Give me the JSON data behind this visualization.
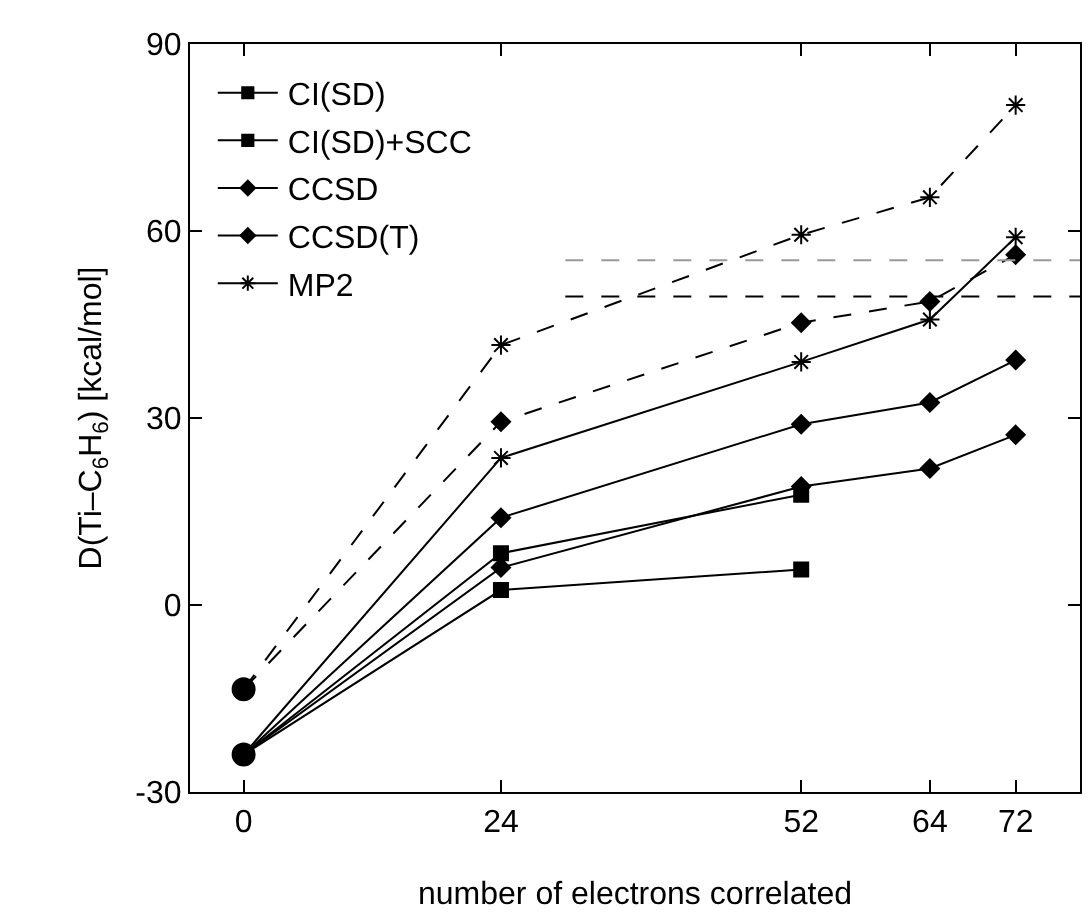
{
  "chart_data": {
    "type": "line",
    "xlabel": "number of electrons correlated",
    "ylabel": "D(Ti–C$_{6}$H$_{6}$) [kcal/mol]",
    "x": [
      0,
      24,
      52,
      64,
      72
    ],
    "xlim": [
      -5,
      78
    ],
    "xticks": [
      0,
      24,
      52,
      64,
      72
    ],
    "ylim": [
      -30,
      90
    ],
    "yticks": [
      -30,
      0,
      30,
      60,
      90
    ],
    "grid": false,
    "legend": "top left",
    "line_style": "solid",
    "series": [
      {
        "name": "CI(SD)",
        "color": "#000000",
        "marker": "square",
        "values": [
          -24,
          2.4,
          5.7,
          null,
          null
        ]
      },
      {
        "name": "CI(SD)+SCC",
        "color": "#000000",
        "marker": "square",
        "values": [
          -24,
          8.3,
          17.7,
          null,
          null
        ]
      },
      {
        "name": "CCSD",
        "color": "#000000",
        "marker": "diamond",
        "values": [
          -24,
          6,
          19,
          21.9,
          27.3
        ]
      },
      {
        "name": "CCSD(T)",
        "color": "#000000",
        "marker": "diamond",
        "values": [
          -24,
          14,
          29,
          32.5,
          39.3
        ]
      },
      {
        "name": "MP2",
        "color": "#000000",
        "marker": "cross",
        "values": [
          -24,
          23.6,
          39,
          45.8,
          59
        ]
      },
      {
        "color": "#000000",
        "marker": "diamond",
        "line_style": "dashed",
        "values": [
          -13.5,
          29.4,
          45.3,
          48.7,
          56.2
        ]
      },
      {
        "color": "#000000",
        "marker": "cross",
        "line_style": "dashed",
        "values": [
          -13.5,
          41.7,
          59.4,
          65.4,
          80.2
        ]
      },
      {
        "type": "scatter",
        "color": "#000000",
        "marker": "circle",
        "x": [
          0,
          0
        ],
        "values": [
          -24,
          -13.5
        ]
      },
      {
        "color": "#999999",
        "marker": "none",
        "line_style": "dashed",
        "x": [
          30,
          78
        ],
        "values": [
          55.3,
          55.3
        ]
      },
      {
        "color": "#000000",
        "marker": "none",
        "line_style": "dashed",
        "x": [
          30,
          78
        ],
        "values": [
          49.5,
          49.5
        ]
      }
    ]
  }
}
